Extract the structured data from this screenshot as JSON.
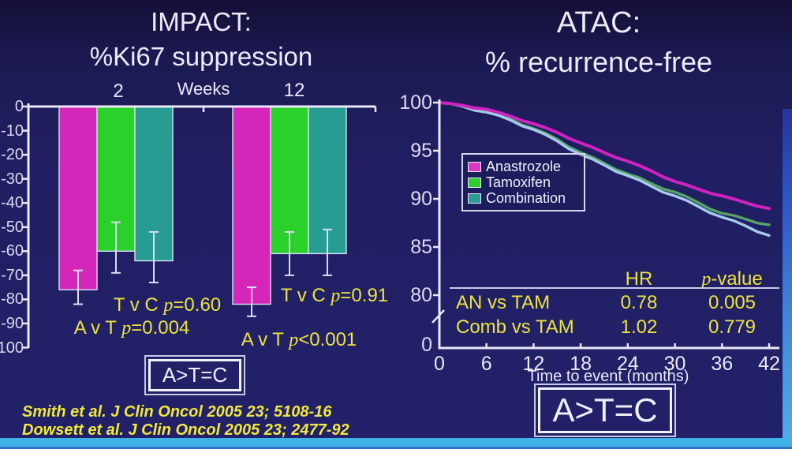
{
  "decor": {
    "background": "#211f63",
    "axis_color": "#e9e7f8",
    "yellow_text": "#ece43e",
    "progress_bar_color": "#41b2e6",
    "right_strip_color": "#3d86d8"
  },
  "citations": [
    "Smith et al.  J Clin Oncol 2005 23; 5108-16",
    "Dowsett et al.  J Clin Oncol 2005 23; 2477-92"
  ],
  "chart_data": [
    {
      "type": "bar",
      "title_line1": "IMPACT:",
      "title_line2": "%Ki67 suppression",
      "xlabel": "Weeks",
      "categories": [
        "2",
        "12"
      ],
      "ylim": [
        -100,
        0
      ],
      "yticks": [
        0,
        -10,
        -20,
        -30,
        -40,
        -50,
        -60,
        -70,
        -80,
        -90,
        -100
      ],
      "series": [
        {
          "name": "Anastrozole",
          "color": "#d426b8",
          "values": [
            -76,
            -82
          ],
          "ci_high": [
            -68,
            -75
          ],
          "ci_low": [
            -82,
            -87
          ]
        },
        {
          "name": "Tamoxifen",
          "color": "#2bd12b",
          "values": [
            -60,
            -61
          ],
          "ci_high": [
            -48,
            -52
          ],
          "ci_low": [
            -69,
            -70
          ]
        },
        {
          "name": "Combination",
          "color": "#269c92",
          "values": [
            -64,
            -61
          ],
          "ci_high": [
            -52,
            -51
          ],
          "ci_low": [
            -73,
            -70
          ]
        }
      ],
      "annotations": [
        {
          "pre": "T v C ",
          "p": "p",
          "post": "=0.60",
          "group": "2"
        },
        {
          "pre": "A v T ",
          "p": "p",
          "post": "=0.004",
          "group": "2"
        },
        {
          "pre": "T v C ",
          "p": "p",
          "post": "=0.91",
          "group": "12"
        },
        {
          "pre": "A v T ",
          "p": "p",
          "post": "<0.001",
          "group": "12"
        }
      ],
      "conclusion": "A>T=C"
    },
    {
      "type": "line",
      "title_line1": "ATAC:",
      "title_line2": "% recurrence-free",
      "xlabel": "Time to event (months)",
      "xticks": [
        0,
        6,
        12,
        18,
        24,
        30,
        36,
        42
      ],
      "yticks": [
        100,
        95,
        90,
        85,
        80,
        0
      ],
      "axis_break": true,
      "legend_position": "upper-left-inside",
      "series": [
        {
          "name": "Anastrozole",
          "color": "#cf22c2",
          "legend_color": "#d938c0",
          "x": [
            0,
            3,
            6,
            9,
            12,
            15,
            18,
            21,
            24,
            27,
            30,
            33,
            36,
            39,
            42
          ],
          "y": [
            100,
            99.7,
            99.3,
            98.6,
            97.8,
            96.9,
            95.8,
            94.8,
            93.9,
            92.9,
            91.8,
            91.0,
            90.3,
            89.6,
            89.0
          ]
        },
        {
          "name": "Tamoxifen",
          "color": "#55a468",
          "legend_color": "#2ecc2e",
          "x": [
            0,
            3,
            6,
            9,
            12,
            15,
            18,
            21,
            24,
            27,
            30,
            33,
            36,
            39,
            42
          ],
          "y": [
            100,
            99.6,
            99.1,
            98.3,
            97.3,
            96.2,
            94.8,
            93.7,
            92.6,
            91.6,
            90.7,
            89.6,
            88.5,
            87.9,
            87.3
          ]
        },
        {
          "name": "Combination",
          "color": "#a6cbe8",
          "legend_color": "#2c9d93",
          "x": [
            0,
            3,
            6,
            9,
            12,
            15,
            18,
            21,
            24,
            27,
            30,
            33,
            36,
            39,
            42
          ],
          "y": [
            100,
            99.6,
            99.0,
            98.2,
            97.2,
            96.0,
            94.6,
            93.5,
            92.4,
            91.3,
            90.3,
            89.2,
            88.1,
            87.2,
            86.2
          ]
        }
      ],
      "table": {
        "header": {
          "hr": "HR",
          "p": "p",
          "p_rest": "-value"
        },
        "rows": [
          {
            "label": "AN vs TAM",
            "hr": "0.78",
            "p": "0.005"
          },
          {
            "label": "Comb vs TAM",
            "hr": "1.02",
            "p": "0.779"
          }
        ]
      },
      "conclusion": "A>T=C"
    }
  ]
}
